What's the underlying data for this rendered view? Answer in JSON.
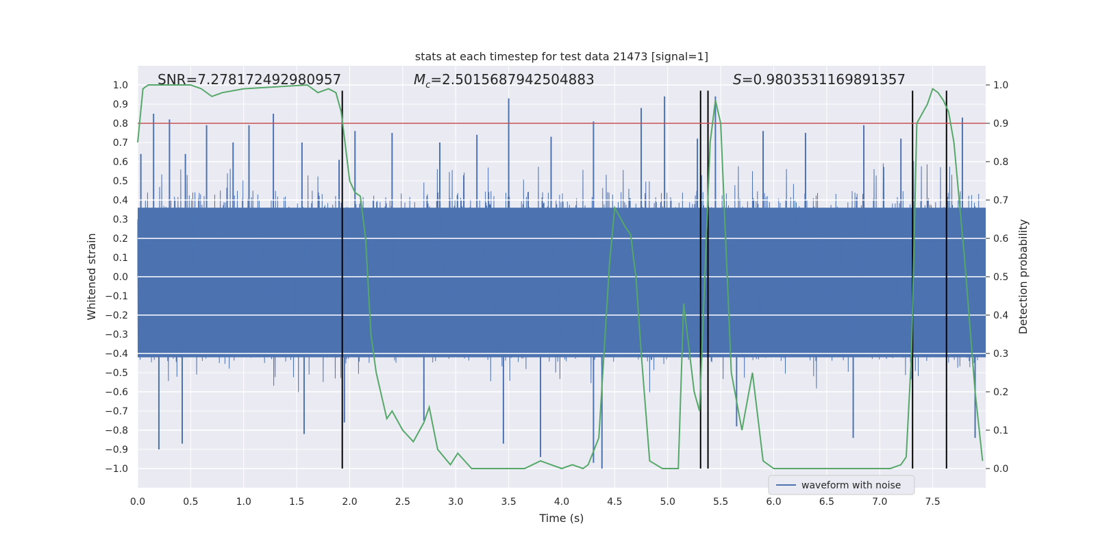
{
  "chart_data": {
    "type": "line",
    "title": "stats at each timestep for test data 21473 [signal=1]",
    "xlabel": "Time (s)",
    "ylabel": "Whitened strain",
    "y2label": "Detection probability",
    "xlim": [
      0.0,
      8.0
    ],
    "ylim": [
      -1.1,
      1.1
    ],
    "y2lim": [
      -0.05,
      1.05
    ],
    "xticks": [
      0.0,
      0.5,
      1.0,
      1.5,
      2.0,
      2.5,
      3.0,
      3.5,
      4.0,
      4.5,
      5.0,
      5.5,
      6.0,
      6.5,
      7.0,
      7.5
    ],
    "xtick_labels": [
      "0.0",
      "0.5",
      "1.0",
      "1.5",
      "2.0",
      "2.5",
      "3.0",
      "3.5",
      "4.0",
      "4.5",
      "5.0",
      "5.5",
      "6.0",
      "6.5",
      "7.0",
      "7.5"
    ],
    "yticks": [
      -1.0,
      -0.9,
      -0.8,
      -0.7,
      -0.6,
      -0.5,
      -0.4,
      -0.3,
      -0.2,
      -0.1,
      0.0,
      0.1,
      0.2,
      0.3,
      0.4,
      0.5,
      0.6,
      0.7,
      0.8,
      0.9,
      1.0
    ],
    "ytick_labels": [
      "−1.0",
      "−0.9",
      "−0.8",
      "−0.7",
      "−0.6",
      "−0.5",
      "−0.4",
      "−0.3",
      "−0.2",
      "−0.1",
      "0.0",
      "0.1",
      "0.2",
      "0.3",
      "0.4",
      "0.5",
      "0.6",
      "0.7",
      "0.8",
      "0.9",
      "1.0"
    ],
    "y2ticks": [
      0.0,
      0.1,
      0.2,
      0.3,
      0.4,
      0.5,
      0.6,
      0.7,
      0.8,
      0.9,
      1.0
    ],
    "y2tick_labels": [
      "0.0",
      "0.1",
      "0.2",
      "0.3",
      "0.4",
      "0.5",
      "0.6",
      "0.7",
      "0.8",
      "0.9",
      "1.0"
    ],
    "annotations": {
      "snr_label": "SNR=7.278172492980957",
      "mc_symbol": "M",
      "mc_subscript": "c",
      "mc_value": "=2.5015687942504883",
      "s_symbol": "S",
      "s_value": "=0.9803531169891357"
    },
    "threshold": {
      "value": 0.9,
      "axis": "right",
      "color": "#c44e52"
    },
    "event_markers": {
      "times": [
        1.93,
        5.31,
        5.38,
        7.31,
        7.63
      ],
      "y_range": [
        -1.0,
        0.97
      ],
      "color": "#000000"
    },
    "waveform": {
      "name": "waveform with noise",
      "color": "#4c72b0",
      "x_start": 0.0,
      "x_end": 8.0,
      "typical_envelope": 0.45,
      "spikes": [
        {
          "t": 0.03,
          "v": 0.64
        },
        {
          "t": 0.15,
          "v": 0.85
        },
        {
          "t": 0.3,
          "v": 0.82
        },
        {
          "t": 0.45,
          "v": 0.64
        },
        {
          "t": 0.65,
          "v": 0.79
        },
        {
          "t": 0.9,
          "v": 0.7
        },
        {
          "t": 1.05,
          "v": 0.79
        },
        {
          "t": 1.28,
          "v": 0.85
        },
        {
          "t": 1.55,
          "v": 0.7
        },
        {
          "t": 1.9,
          "v": 0.61
        },
        {
          "t": 2.05,
          "v": 0.76
        },
        {
          "t": 2.4,
          "v": 0.75
        },
        {
          "t": 2.85,
          "v": 0.7
        },
        {
          "t": 3.2,
          "v": 0.74
        },
        {
          "t": 3.5,
          "v": 0.93
        },
        {
          "t": 3.9,
          "v": 0.73
        },
        {
          "t": 4.3,
          "v": 0.81
        },
        {
          "t": 4.75,
          "v": 0.88
        },
        {
          "t": 4.97,
          "v": 0.94
        },
        {
          "t": 5.28,
          "v": 0.72
        },
        {
          "t": 5.45,
          "v": 0.94
        },
        {
          "t": 5.9,
          "v": 0.76
        },
        {
          "t": 6.3,
          "v": 0.75
        },
        {
          "t": 6.85,
          "v": 0.79
        },
        {
          "t": 7.2,
          "v": 0.72
        },
        {
          "t": 7.78,
          "v": 0.83
        },
        {
          "t": 0.2,
          "v": -0.9
        },
        {
          "t": 0.42,
          "v": -0.87
        },
        {
          "t": 1.57,
          "v": -0.82
        },
        {
          "t": 1.95,
          "v": -0.76
        },
        {
          "t": 2.7,
          "v": -0.75
        },
        {
          "t": 3.45,
          "v": -0.87
        },
        {
          "t": 3.8,
          "v": -0.94
        },
        {
          "t": 4.3,
          "v": -0.97
        },
        {
          "t": 4.38,
          "v": -1.0
        },
        {
          "t": 5.65,
          "v": -0.78
        },
        {
          "t": 6.75,
          "v": -0.84
        },
        {
          "t": 7.9,
          "v": -0.84
        }
      ]
    },
    "detection_probability": {
      "name": "detection probability",
      "color": "#55a868",
      "x": [
        0.0,
        0.05,
        0.1,
        0.15,
        0.5,
        0.6,
        0.7,
        0.8,
        1.0,
        1.6,
        1.7,
        1.8,
        1.87,
        1.92,
        2.0,
        2.05,
        2.1,
        2.15,
        2.2,
        2.25,
        2.35,
        2.4,
        2.5,
        2.6,
        2.7,
        2.75,
        2.83,
        2.95,
        3.02,
        3.15,
        3.45,
        3.65,
        3.8,
        3.9,
        4.0,
        4.1,
        4.2,
        4.25,
        4.35,
        4.45,
        4.5,
        4.6,
        4.65,
        4.7,
        4.75,
        4.83,
        4.95,
        5.1,
        5.15,
        5.25,
        5.3,
        5.4,
        5.45,
        5.5,
        5.6,
        5.7,
        5.8,
        5.9,
        6.0,
        6.5,
        7.0,
        7.1,
        7.2,
        7.25,
        7.3,
        7.35,
        7.45,
        7.5,
        7.55,
        7.6,
        7.65,
        7.7,
        7.8,
        7.9,
        7.97
      ],
      "y": [
        0.85,
        0.99,
        1.0,
        1.0,
        1.0,
        0.99,
        0.97,
        0.98,
        0.99,
        1.0,
        0.98,
        0.99,
        0.98,
        0.93,
        0.75,
        0.72,
        0.71,
        0.6,
        0.35,
        0.25,
        0.13,
        0.15,
        0.1,
        0.07,
        0.12,
        0.16,
        0.05,
        0.01,
        0.04,
        0.0,
        0.0,
        0.0,
        0.02,
        0.01,
        0.0,
        0.01,
        0.0,
        0.01,
        0.08,
        0.53,
        0.68,
        0.63,
        0.61,
        0.5,
        0.3,
        0.02,
        0.0,
        0.0,
        0.43,
        0.2,
        0.15,
        0.85,
        0.96,
        0.9,
        0.25,
        0.1,
        0.25,
        0.02,
        0.0,
        0.0,
        0.0,
        0.0,
        0.01,
        0.03,
        0.3,
        0.9,
        0.95,
        0.99,
        0.98,
        0.96,
        0.93,
        0.85,
        0.55,
        0.2,
        0.02
      ]
    },
    "legend": {
      "entries": [
        "waveform with noise"
      ],
      "placement": "bottom-right"
    },
    "grid": true
  }
}
